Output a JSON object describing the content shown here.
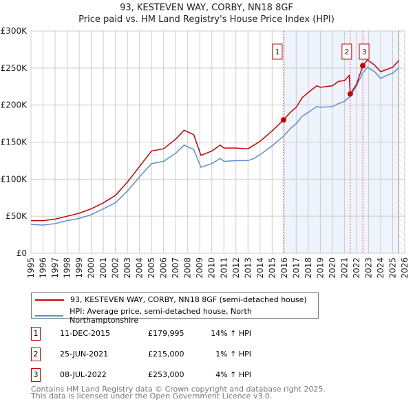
{
  "chart_data": {
    "type": "line",
    "title": "93, KESTEVEN WAY, CORBY, NN18 8GF",
    "subtitle": "Price paid vs. HM Land Registry's House Price Index (HPI)",
    "xlim": [
      1995,
      2026
    ],
    "ylim": [
      0,
      300000
    ],
    "x_ticks": [
      "1995",
      "1996",
      "1997",
      "1998",
      "1999",
      "2000",
      "2001",
      "2002",
      "2003",
      "2004",
      "2005",
      "2006",
      "2007",
      "2008",
      "2009",
      "2010",
      "2011",
      "2012",
      "2013",
      "2014",
      "2015",
      "2016",
      "2017",
      "2018",
      "2019",
      "2020",
      "2021",
      "2022",
      "2023",
      "2024",
      "2025",
      "2026"
    ],
    "y_ticks": [
      {
        "v": 0,
        "label": "£0"
      },
      {
        "v": 50000,
        "label": "£50K"
      },
      {
        "v": 100000,
        "label": "£100K"
      },
      {
        "v": 150000,
        "label": "£150K"
      },
      {
        "v": 200000,
        "label": "£200K"
      },
      {
        "v": 250000,
        "label": "£250K"
      },
      {
        "v": 300000,
        "label": "£300K"
      }
    ],
    "grid": true,
    "shaded_from": 2015.95,
    "data_end": 2025.5,
    "series": [
      {
        "name": "93, KESTEVEN WAY, CORBY, NN18 8GF (semi-detached house)",
        "color": "#cc0000",
        "x": [
          1995,
          1996,
          1997,
          1998,
          1999,
          2000,
          2001,
          2002,
          2003,
          2004,
          2005,
          2006,
          2007,
          2007.7,
          2008.5,
          2009.1,
          2010,
          2010.7,
          2011,
          2012,
          2013,
          2013.5,
          2014,
          2015,
          2015.95,
          2016.5,
          2017,
          2017.5,
          2018,
          2018.7,
          2019,
          2020,
          2020.5,
          2021,
          2021.4,
          2021.48,
          2022,
          2022.52,
          2022.9,
          2023.5,
          2024,
          2024.5,
          2025,
          2025.5
        ],
        "y": [
          44000,
          44000,
          46000,
          50000,
          54000,
          60000,
          68000,
          78000,
          96000,
          117000,
          138000,
          141000,
          154000,
          166000,
          160000,
          132000,
          138000,
          146000,
          142000,
          142000,
          141000,
          146000,
          151000,
          165000,
          179995,
          190000,
          197000,
          210000,
          217000,
          226000,
          224000,
          226000,
          232000,
          233000,
          240000,
          215000,
          228000,
          253000,
          261000,
          254000,
          245000,
          248000,
          251000,
          260000
        ]
      },
      {
        "name": "HPI: Average price, semi-detached house, North Northamptonshire",
        "color": "#5b8fd4",
        "x": [
          1995,
          1996,
          1997,
          1998,
          1999,
          2000,
          2001,
          2002,
          2003,
          2004,
          2005,
          2006,
          2007,
          2007.7,
          2008.5,
          2009.1,
          2010,
          2010.7,
          2011,
          2012,
          2013,
          2013.5,
          2014,
          2015,
          2015.95,
          2016.5,
          2017,
          2017.5,
          2018,
          2018.7,
          2019,
          2020,
          2020.5,
          2021,
          2021.5,
          2022,
          2022.5,
          2022.9,
          2023.5,
          2024,
          2024.5,
          2025,
          2025.5
        ],
        "y": [
          39000,
          38000,
          40000,
          44000,
          47000,
          52000,
          60000,
          68000,
          84000,
          103000,
          121000,
          124000,
          135000,
          146000,
          140000,
          116000,
          121000,
          128000,
          124000,
          125000,
          125000,
          128000,
          133000,
          145000,
          158000,
          168000,
          175000,
          185000,
          190000,
          198000,
          197000,
          198000,
          202000,
          205000,
          212000,
          226000,
          243000,
          251000,
          245000,
          236000,
          240000,
          243000,
          250000
        ]
      }
    ],
    "sales": [
      {
        "label": "1",
        "x": 2015.95,
        "y": 179995,
        "date": "11-DEC-2015",
        "price": "£179,995",
        "hpi": "14% ↑ HPI"
      },
      {
        "label": "2",
        "x": 2021.48,
        "y": 215000,
        "date": "25-JUN-2021",
        "price": "£215,000",
        "hpi": "1% ↑ HPI"
      },
      {
        "label": "3",
        "x": 2022.52,
        "y": 253000,
        "date": "08-JUL-2022",
        "price": "£253,000",
        "hpi": "4% ↑ HPI"
      }
    ]
  },
  "footer": [
    "Contains HM Land Registry data © Crown copyright and database right 2025.",
    "This data is licensed under the Open Government Licence v3.0."
  ]
}
